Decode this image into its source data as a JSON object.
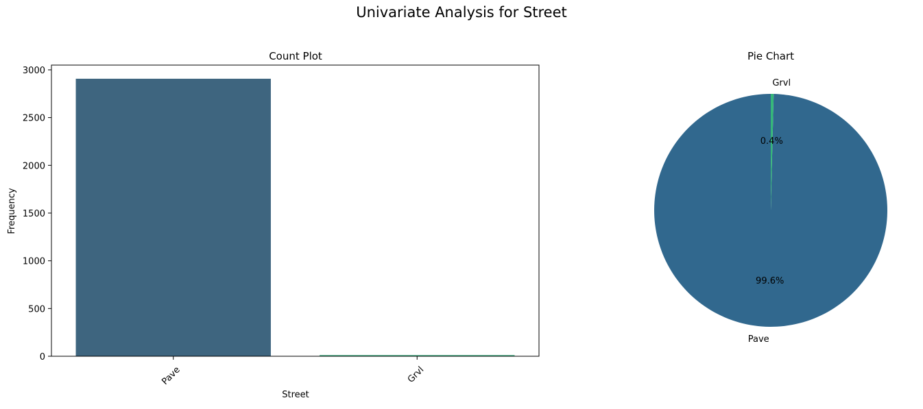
{
  "suptitle": "Univariate Analysis for Street",
  "chart_data": [
    {
      "type": "bar",
      "title": "Count Plot",
      "xlabel": "Street",
      "ylabel": "Frequency",
      "categories": [
        "Pave",
        "Grvl"
      ],
      "values": [
        2907,
        12
      ],
      "ylim": [
        0,
        3050
      ],
      "yticks": [
        0,
        500,
        1000,
        1500,
        2000,
        2500,
        3000
      ],
      "xtick_rotation_deg": 45,
      "grid": false,
      "colors": [
        "#3e657f",
        "#3aab7e"
      ]
    },
    {
      "type": "pie",
      "title": "Pie Chart",
      "labels": [
        "Pave",
        "Grvl"
      ],
      "values": [
        99.6,
        0.4
      ],
      "autopct_labels": [
        "99.6%",
        "0.4%"
      ],
      "start_angle_deg": 90,
      "colors": [
        "#31688e",
        "#35b779"
      ]
    }
  ]
}
